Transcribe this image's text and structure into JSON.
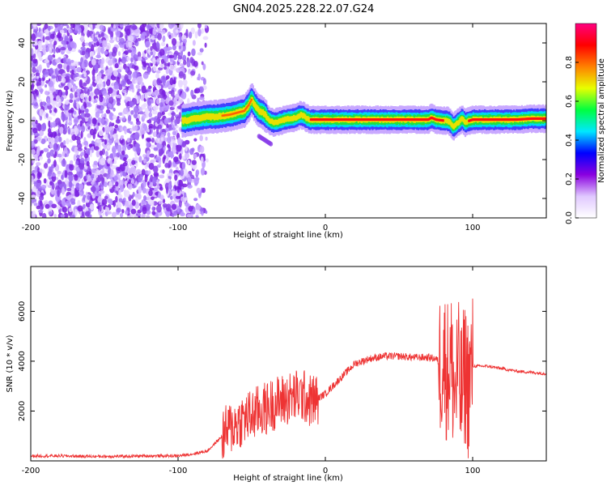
{
  "title": "GN04.2025.228.22.07.G24",
  "chart_data": [
    {
      "type": "heatmap",
      "xlabel": "Height of straight line (km)",
      "ylabel": "Frequency (Hz)",
      "xlim": [
        -200,
        150
      ],
      "ylim": [
        -50,
        50
      ],
      "xticks": [
        -200,
        -100,
        0,
        100
      ],
      "xtick_labels": [
        "-200",
        "-100",
        "0",
        "100"
      ],
      "yticks": [
        -40,
        -20,
        0,
        20,
        40
      ],
      "ytick_labels": [
        "-40",
        "-20",
        "0",
        "20",
        "40"
      ],
      "grid": false,
      "colorbar": {
        "label": "Normalized spectral amplitude",
        "range": [
          0,
          1
        ],
        "ticks": [
          0.0,
          0.2,
          0.4,
          0.6,
          0.8
        ],
        "tick_labels": [
          "0.0",
          "0.2",
          "0.4",
          "0.6",
          "0.8"
        ],
        "colormap": [
          "#ffffff",
          "#e0c8ff",
          "#8a00e0",
          "#0000ff",
          "#00e8ff",
          "#00ff40",
          "#e8ff00",
          "#ff8000",
          "#ff0000",
          "#ff0080"
        ]
      },
      "ridge": {
        "x": [
          -95,
          -90,
          -85,
          -80,
          -75,
          -70,
          -65,
          -60,
          -55,
          -52,
          -50,
          -48,
          -45,
          -42,
          -40,
          -38,
          -35,
          -30,
          -25,
          -20,
          -17,
          -15,
          -12,
          -10,
          -5,
          0,
          10,
          20,
          40,
          60,
          70,
          72,
          75,
          80,
          83,
          85,
          87,
          90,
          93,
          95,
          98,
          100,
          110,
          120,
          130,
          140,
          150
        ],
        "y": [
          0,
          1,
          1.5,
          2,
          2,
          2.5,
          3,
          4,
          5,
          8,
          11,
          8,
          5,
          4,
          2,
          0,
          -1,
          0,
          1,
          1.5,
          3,
          2.5,
          1,
          0.5,
          0.5,
          0.5,
          0.5,
          0.5,
          0.5,
          0.5,
          0.5,
          1.5,
          0.5,
          0,
          0,
          -1,
          -3,
          -1,
          1,
          -1,
          0,
          0.5,
          0.5,
          0.5,
          0.5,
          1,
          1
        ]
      },
      "noise_region_km": [
        -200,
        -80
      ],
      "secondary_feature": {
        "x": [
          -45,
          -37
        ],
        "y": [
          -8,
          -12
        ]
      }
    },
    {
      "type": "line",
      "xlabel": "Height of straight line (km)",
      "ylabel": "SNR (10 * v/v)",
      "xlim": [
        -200,
        150
      ],
      "ylim": [
        0,
        7800
      ],
      "xticks": [
        -200,
        -100,
        0,
        100
      ],
      "xtick_labels": [
        "-200",
        "-100",
        "0",
        "100"
      ],
      "yticks": [
        2000,
        4000,
        6000
      ],
      "ytick_labels": [
        "2000",
        "4000",
        "6000"
      ],
      "grid": false,
      "color": "#ee3333",
      "series": [
        {
          "x": [
            -200,
            -180,
            -160,
            -140,
            -120,
            -100,
            -90,
            -80,
            -75,
            -70,
            -65,
            -60,
            -55,
            -50,
            -45,
            -40,
            -35,
            -30,
            -25,
            -20,
            -15,
            -10,
            -5,
            0,
            5,
            10,
            15,
            20,
            25,
            30,
            40,
            50,
            60,
            70,
            75,
            78,
            80,
            83,
            85,
            88,
            90,
            92,
            95,
            97,
            100,
            110,
            120,
            130,
            140,
            150
          ],
          "y": [
            200,
            200,
            180,
            180,
            200,
            200,
            280,
            400,
            700,
            1000,
            1300,
            1500,
            1700,
            1800,
            2000,
            2100,
            2300,
            2400,
            2500,
            2600,
            2600,
            2400,
            2500,
            2700,
            3000,
            3300,
            3600,
            3900,
            4000,
            4100,
            4200,
            4200,
            4150,
            4150,
            4100,
            3900,
            4200,
            3600,
            4100,
            2700,
            3700,
            2600,
            3600,
            3000,
            3800,
            3800,
            3700,
            3600,
            3550,
            3500
          ]
        }
      ],
      "noise_segments": [
        {
          "from": -70,
          "to": -5,
          "amplitude": 1100
        },
        {
          "from": 77,
          "to": 100,
          "amplitude": 3000
        }
      ]
    }
  ]
}
